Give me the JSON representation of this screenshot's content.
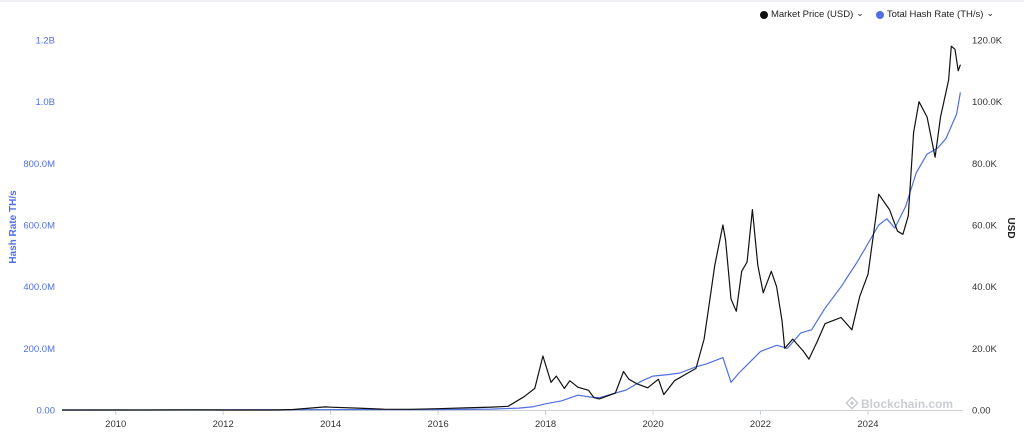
{
  "legend": {
    "items": [
      {
        "label": "Market Price (USD)",
        "color": "#111111"
      },
      {
        "label": "Total Hash Rate (TH/s)",
        "color": "#4f6fe3"
      }
    ],
    "chevron": "⌄"
  },
  "watermark": "Blockchain.com",
  "chart_data": {
    "type": "line",
    "ylabel_left": "Hash Rate TH/s",
    "ylabel_right": "USD",
    "x_ticks": [
      "2010",
      "2012",
      "2014",
      "2016",
      "2018",
      "2020",
      "2022",
      "2024"
    ],
    "x_range": [
      2009.0,
      2025.75
    ],
    "y_left_ticks": [
      "0.00",
      "200.0M",
      "400.0M",
      "600.0M",
      "800.0M",
      "1.0B",
      "1.2B"
    ],
    "y_left_range": [
      0,
      1200000000
    ],
    "y_right_ticks": [
      "0.00",
      "20.0K",
      "40.0K",
      "60.0K",
      "80.0K",
      "100.0K",
      "120.0K"
    ],
    "y_right_range": [
      0,
      120000
    ],
    "grid": false,
    "legend_position": "top-right",
    "series": [
      {
        "name": "Market Price (USD)",
        "axis": "right",
        "color": "#111111",
        "points": [
          [
            2009.0,
            0
          ],
          [
            2010.5,
            0
          ],
          [
            2011.45,
            30
          ],
          [
            2012.0,
            5
          ],
          [
            2013.0,
            15
          ],
          [
            2013.3,
            150
          ],
          [
            2013.9,
            1000
          ],
          [
            2014.0,
            900
          ],
          [
            2014.5,
            600
          ],
          [
            2015.0,
            250
          ],
          [
            2015.5,
            240
          ],
          [
            2016.0,
            430
          ],
          [
            2016.5,
            680
          ],
          [
            2017.0,
            950
          ],
          [
            2017.3,
            1200
          ],
          [
            2017.6,
            4300
          ],
          [
            2017.8,
            7000
          ],
          [
            2017.95,
            17500
          ],
          [
            2018.1,
            9000
          ],
          [
            2018.2,
            11000
          ],
          [
            2018.35,
            7000
          ],
          [
            2018.45,
            9500
          ],
          [
            2018.6,
            7400
          ],
          [
            2018.8,
            6400
          ],
          [
            2018.9,
            4000
          ],
          [
            2019.0,
            3600
          ],
          [
            2019.3,
            5500
          ],
          [
            2019.45,
            12500
          ],
          [
            2019.55,
            10000
          ],
          [
            2019.7,
            8500
          ],
          [
            2019.9,
            7200
          ],
          [
            2020.1,
            10000
          ],
          [
            2020.2,
            5000
          ],
          [
            2020.4,
            9500
          ],
          [
            2020.6,
            11500
          ],
          [
            2020.8,
            13500
          ],
          [
            2020.95,
            23000
          ],
          [
            2021.05,
            35000
          ],
          [
            2021.15,
            47000
          ],
          [
            2021.3,
            60000
          ],
          [
            2021.35,
            55000
          ],
          [
            2021.45,
            36000
          ],
          [
            2021.55,
            32000
          ],
          [
            2021.65,
            45000
          ],
          [
            2021.75,
            48000
          ],
          [
            2021.85,
            65000
          ],
          [
            2021.95,
            47000
          ],
          [
            2022.05,
            38000
          ],
          [
            2022.2,
            45000
          ],
          [
            2022.3,
            40000
          ],
          [
            2022.4,
            29000
          ],
          [
            2022.45,
            20000
          ],
          [
            2022.6,
            23000
          ],
          [
            2022.8,
            19000
          ],
          [
            2022.9,
            16500
          ],
          [
            2023.05,
            22000
          ],
          [
            2023.2,
            28000
          ],
          [
            2023.35,
            29000
          ],
          [
            2023.5,
            30000
          ],
          [
            2023.7,
            26000
          ],
          [
            2023.85,
            37000
          ],
          [
            2024.0,
            44000
          ],
          [
            2024.15,
            63000
          ],
          [
            2024.2,
            70000
          ],
          [
            2024.4,
            65000
          ],
          [
            2024.55,
            58000
          ],
          [
            2024.65,
            57000
          ],
          [
            2024.75,
            63000
          ],
          [
            2024.85,
            90000
          ],
          [
            2024.95,
            100000
          ],
          [
            2025.1,
            95000
          ],
          [
            2025.25,
            82000
          ],
          [
            2025.35,
            95000
          ],
          [
            2025.5,
            107000
          ],
          [
            2025.55,
            118000
          ],
          [
            2025.62,
            117000
          ],
          [
            2025.68,
            110000
          ],
          [
            2025.72,
            112000
          ]
        ]
      },
      {
        "name": "Total Hash Rate (TH/s)",
        "axis": "left",
        "color": "#4f6fe3",
        "points": [
          [
            2009.0,
            0
          ],
          [
            2016.0,
            1500000
          ],
          [
            2016.5,
            2000000
          ],
          [
            2017.0,
            3000000
          ],
          [
            2017.5,
            6000000
          ],
          [
            2017.75,
            10000000
          ],
          [
            2018.0,
            20000000
          ],
          [
            2018.3,
            30000000
          ],
          [
            2018.6,
            48000000
          ],
          [
            2018.85,
            42000000
          ],
          [
            2019.0,
            40000000
          ],
          [
            2019.5,
            65000000
          ],
          [
            2019.8,
            95000000
          ],
          [
            2020.0,
            110000000
          ],
          [
            2020.3,
            115000000
          ],
          [
            2020.5,
            120000000
          ],
          [
            2020.8,
            140000000
          ],
          [
            2021.0,
            150000000
          ],
          [
            2021.3,
            170000000
          ],
          [
            2021.45,
            90000000
          ],
          [
            2021.6,
            120000000
          ],
          [
            2021.8,
            155000000
          ],
          [
            2022.0,
            190000000
          ],
          [
            2022.3,
            210000000
          ],
          [
            2022.5,
            200000000
          ],
          [
            2022.75,
            250000000
          ],
          [
            2022.95,
            260000000
          ],
          [
            2023.2,
            330000000
          ],
          [
            2023.5,
            400000000
          ],
          [
            2023.8,
            480000000
          ],
          [
            2024.0,
            540000000
          ],
          [
            2024.2,
            600000000
          ],
          [
            2024.35,
            620000000
          ],
          [
            2024.5,
            590000000
          ],
          [
            2024.7,
            660000000
          ],
          [
            2024.9,
            770000000
          ],
          [
            2025.1,
            830000000
          ],
          [
            2025.3,
            850000000
          ],
          [
            2025.45,
            880000000
          ],
          [
            2025.55,
            920000000
          ],
          [
            2025.65,
            960000000
          ],
          [
            2025.72,
            1030000000
          ]
        ]
      }
    ]
  }
}
